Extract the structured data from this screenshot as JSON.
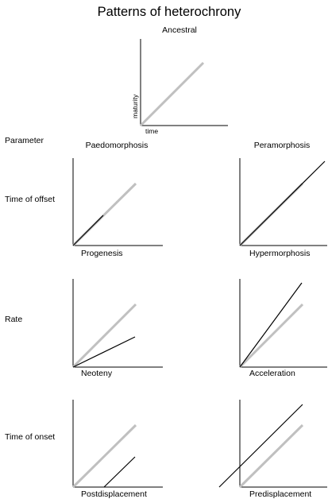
{
  "title": "Patterns of heterochrony",
  "ancestral": {
    "heading": "Ancestral",
    "x_axis_label": "time",
    "y_axis_label": "maturity"
  },
  "parameter_heading": "Parameter",
  "columns": {
    "paedomorphosis": "Paedomorphosis",
    "peramorphosis": "Peramorphosis"
  },
  "rows": [
    {
      "parameter": "Time of offset",
      "paedo_label": "Progenesis",
      "pera_label": "Hypermorphosis"
    },
    {
      "parameter": "Rate",
      "paedo_label": "Neoteny",
      "pera_label": "Acceleration"
    },
    {
      "parameter": "Time of onset",
      "paedo_label": "Postdisplacement",
      "pera_label": "Predisplacement"
    }
  ],
  "colors": {
    "ancestral_line": "#c0c0c0",
    "derived_line": "#000000",
    "axes": "#000000"
  }
}
